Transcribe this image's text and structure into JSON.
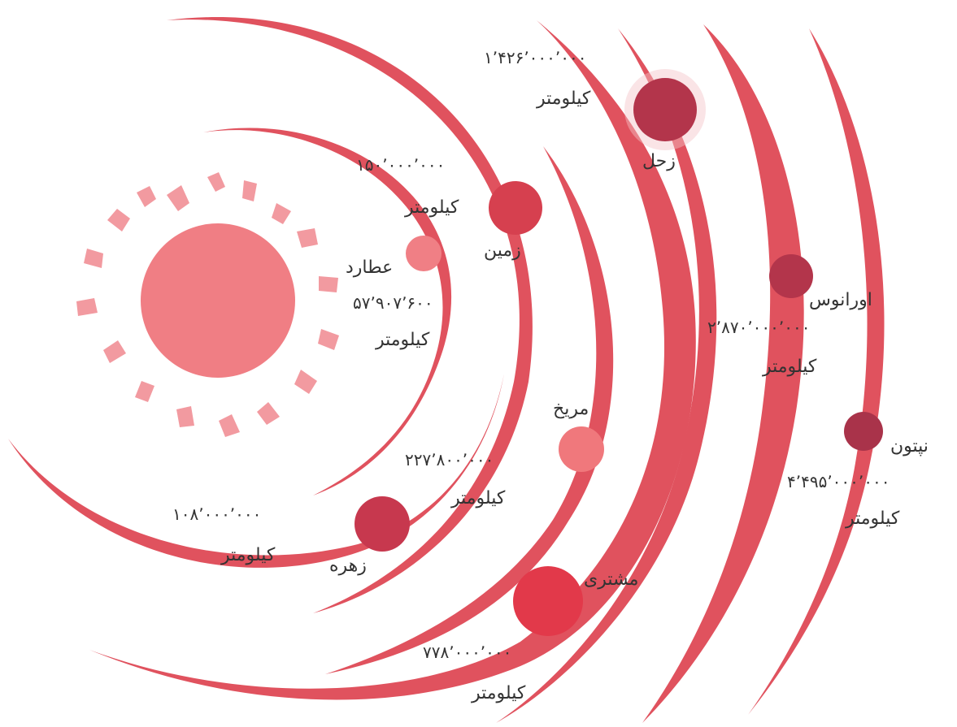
{
  "colors": {
    "orbit": "#e0525e",
    "orbit_light": "#ee8c93",
    "sun": "#f07e84",
    "sun_flame": "#f29aa0",
    "text": "#333333"
  },
  "planets": {
    "mercury": {
      "name": "عطارد",
      "distance": "۵۷٬۹۰۷٬۶۰۰",
      "unit": "کیلومتر",
      "color": "#f07f85"
    },
    "venus": {
      "name": "زهره",
      "distance": "۱۰۸٬۰۰۰٬۰۰۰",
      "unit": "کیلومتر",
      "color": "#c7384e"
    },
    "earth": {
      "name": "زمین",
      "distance": "۱۵۰٬۰۰۰٬۰۰۰",
      "unit": "کیلومتر",
      "color": "#d6404f"
    },
    "mars": {
      "name": "مریخ",
      "distance": "۲۲۷٬۸۰۰٬۰۰۰",
      "unit": "کیلومتر",
      "color": "#f0787c"
    },
    "jupiter": {
      "name": "مشتری",
      "distance": "۷۷۸٬۰۰۰٬۰۰۰",
      "unit": "کیلومتر",
      "color": "#e2394a"
    },
    "saturn": {
      "name": "زحل",
      "distance": "۱٬۴۲۶٬۰۰۰٬۰۰۰",
      "unit": "کیلومتر",
      "color": "#b3354b"
    },
    "uranus": {
      "name": "اورانوس",
      "distance": "۲٬۸۷۰٬۰۰۰٬۰۰۰",
      "unit": "کیلومتر",
      "color": "#b3354b"
    },
    "neptune": {
      "name": "نپتون",
      "distance": "۴٬۴۹۵٬۰۰۰٬۰۰۰",
      "unit": "کیلومتر",
      "color": "#a9334a"
    }
  }
}
